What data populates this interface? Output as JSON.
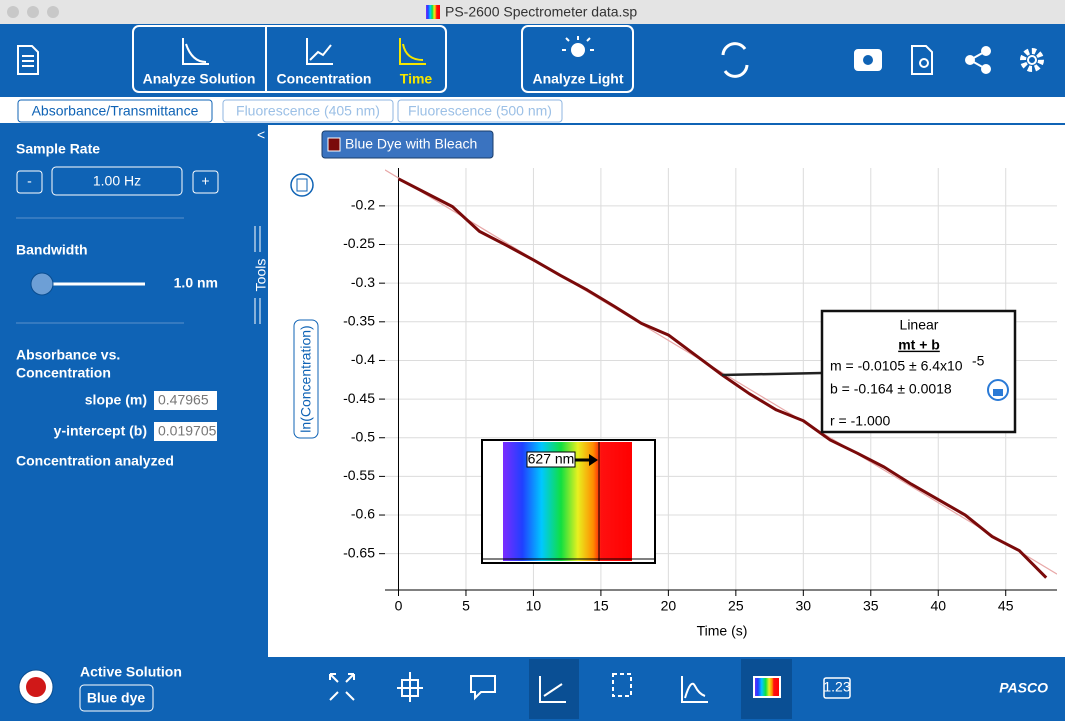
{
  "window": {
    "title": "PS-2600 Spectrometer data.sp"
  },
  "toolbar": {
    "analyze_solution": "Analyze Solution",
    "concentration": "Concentration",
    "time": "Time",
    "analyze_light": "Analyze Light"
  },
  "tabs": [
    "Absorbance/Transmittance",
    "Fluorescence (405 nm)",
    "Fluorescence (500 nm)"
  ],
  "sidebar": {
    "collapse": "<",
    "sample_rate_label": "Sample Rate",
    "minus": "-",
    "sample_rate": "1.00 Hz",
    "plus": "+",
    "bandwidth_label": "Bandwidth",
    "bandwidth": "1.0 nm",
    "tools": "Tools",
    "absorbance_heading": [
      "Absorbance vs.",
      "Concentration"
    ],
    "slope_label": "slope (m)",
    "slope": "0.47965",
    "intercept_label": "y-intercept (b)",
    "intercept": "0.019705",
    "concentration_analyzed": "Concentration analyzed"
  },
  "chart_data": {
    "type": "line",
    "x_label": "Time (s)",
    "y_label": "ln(Concentration)",
    "x": [
      0,
      2,
      4,
      6,
      8,
      10,
      12,
      14,
      16,
      18,
      20,
      22,
      24,
      26,
      28,
      30,
      32,
      34,
      36,
      38,
      40,
      42,
      44,
      46,
      48
    ],
    "series": [
      {
        "name": "Blue Dye with Bleach",
        "color": "#7a0a0a",
        "values": [
          -0.165,
          -0.183,
          -0.201,
          -0.233,
          -0.251,
          -0.27,
          -0.29,
          -0.309,
          -0.33,
          -0.352,
          -0.367,
          -0.393,
          -0.419,
          -0.443,
          -0.464,
          -0.478,
          -0.503,
          -0.52,
          -0.538,
          -0.56,
          -0.58,
          -0.6,
          -0.628,
          -0.646,
          -0.681
        ]
      }
    ],
    "xlim": [
      -1,
      48.8
    ],
    "xticks": [
      0,
      5,
      10,
      15,
      20,
      25,
      30,
      35,
      40,
      45
    ],
    "ylim": [
      -0.697,
      -0.151
    ],
    "yticks": [
      -0.2,
      -0.25,
      -0.3,
      -0.35,
      -0.4,
      -0.45,
      -0.5,
      -0.55,
      -0.6,
      -0.65
    ],
    "grid": true,
    "fit": {
      "slope": -0.0105,
      "intercept": -0.164,
      "color": "#e8a8a8"
    },
    "fit_box": {
      "title": "Linear",
      "equation": "mt + b",
      "m": "m = -0.0105 ± 6.4x10",
      "m_exp": "-5",
      "b": "b  = -0.164   ± 0.0018",
      "r": "r = -1.000"
    },
    "inset_label": "627 nm"
  },
  "bottom": {
    "active_solution": "Active Solution",
    "solution": "Blue dye",
    "brand": "PASCO",
    "table_icon": "1.23"
  }
}
